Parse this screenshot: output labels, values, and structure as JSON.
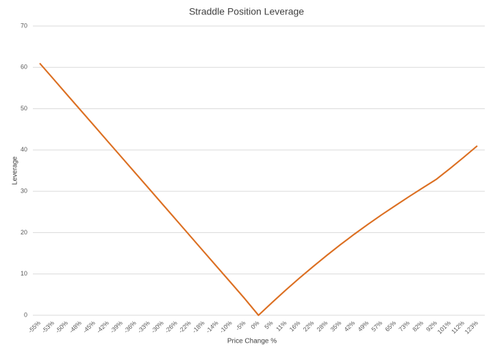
{
  "chart_data": {
    "type": "line",
    "title": "Straddle Position Leverage",
    "x_label": "Price Change %",
    "y_label": "Leverage",
    "categories": [
      "-55%",
      "-53%",
      "-50%",
      "-48%",
      "-45%",
      "-42%",
      "-39%",
      "-36%",
      "-33%",
      "-30%",
      "-26%",
      "-22%",
      "-18%",
      "-14%",
      "-10%",
      "-5%",
      "0%",
      "5%",
      "11%",
      "16%",
      "22%",
      "28%",
      "35%",
      "42%",
      "49%",
      "57%",
      "65%",
      "73%",
      "82%",
      "92%",
      "101%",
      "112%",
      "123%"
    ],
    "series": [
      {
        "name": "Leverage",
        "color": "#dc7023",
        "values": [
          61,
          57.2,
          53.4,
          49.6,
          45.8,
          42,
          38.2,
          34.4,
          30.6,
          26.8,
          23,
          19.2,
          15.4,
          11.6,
          7.8,
          4.0,
          0,
          3.1,
          6.1,
          9.0,
          11.8,
          14.5,
          17.1,
          19.6,
          22.0,
          24.3,
          26.5,
          28.7,
          30.8,
          32.9,
          35.5,
          38.2,
          41
        ]
      }
    ],
    "ylim": [
      0,
      70
    ],
    "yticks": [
      0,
      10,
      20,
      30,
      40,
      50,
      60,
      70
    ],
    "grid": true
  }
}
